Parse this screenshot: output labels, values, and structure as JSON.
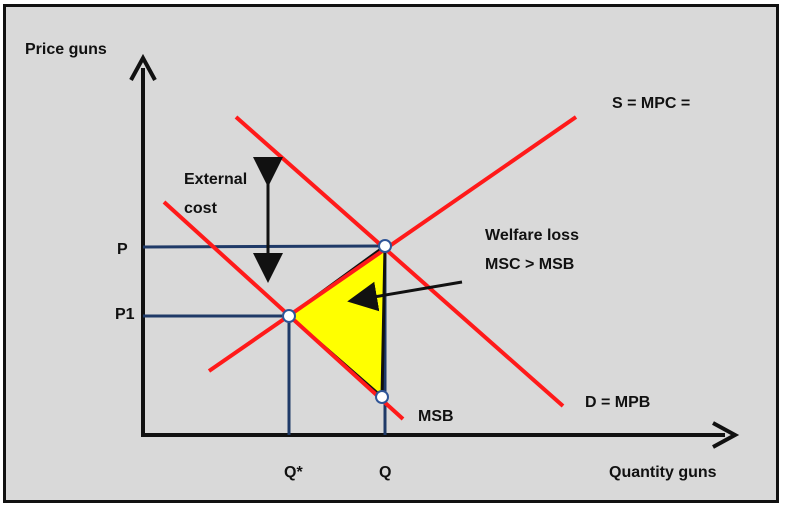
{
  "diagram": {
    "axis_y_label": "Price guns",
    "axis_x_label": "Quantity guns",
    "supply_label": "S = MPC =",
    "demand_label": "D = MPB",
    "msb_label": "MSB",
    "external_cost_line1": "External",
    "external_cost_line2": "cost",
    "welfare_line1": "Welfare loss",
    "welfare_line2": "MSC > MSB",
    "price_p": "P",
    "price_p1": "P1",
    "qty_q_star": "Q*",
    "qty_q": "Q"
  },
  "colors": {
    "background": "#d9d9d9",
    "curve": "#ff1a1a",
    "guide": "#1f3a68",
    "welfare_fill": "#ffff00",
    "axis": "#111111",
    "point_fill": "#ffffff",
    "point_stroke": "#2f5597"
  }
}
